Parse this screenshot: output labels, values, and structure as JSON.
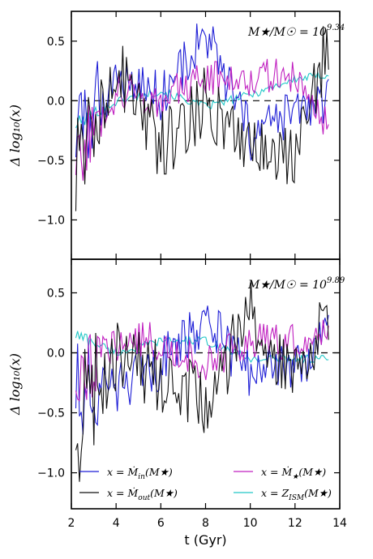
{
  "chart_data": {
    "type": "line",
    "x_label": "t (Gyr)",
    "x_ticks": [
      "2",
      "4",
      "6",
      "8",
      "10",
      "12",
      "14"
    ],
    "xlim": [
      2,
      14
    ],
    "legend_placement": "lower center (bottom panel)",
    "series_styles": [
      {
        "id": "in",
        "label_main": "x = Ṁ",
        "label_sub": "in",
        "label_tail": "(M★)",
        "color": "#1f1fd6"
      },
      {
        "id": "star",
        "label_main": "x = Ṁ",
        "label_sub": "★",
        "label_tail": "(M★)",
        "color": "#c020c0"
      },
      {
        "id": "out",
        "label_main": "x = Ṁ",
        "label_sub": "out",
        "label_tail": "(M★)",
        "color": "#111111"
      },
      {
        "id": "zism",
        "label_main": "x = Z",
        "label_sub": "ISM",
        "label_tail": "(M★)",
        "color": "#22c8c8"
      }
    ],
    "panels": [
      {
        "y_label": "Δ log₁₀(x)",
        "annotation": "M★/M☉ = 10^9.34",
        "annotation_base": "M★/M☉ = 10",
        "annotation_exp": "9.34",
        "ylim": [
          -1.33,
          0.75
        ],
        "y_ticks": [
          0.5,
          0.0,
          -0.5,
          -1.0
        ],
        "y_tick_labels": [
          "0.5",
          "0.0",
          "−0.5",
          "−1.0"
        ],
        "x": [
          2.2,
          4.1,
          6.0,
          8.0,
          10.0,
          12.0,
          13.5
        ],
        "series": [
          {
            "id": "in",
            "values": [
              -0.3,
              0.2,
              0.05,
              0.55,
              -0.3,
              -0.1,
              0.0
            ]
          },
          {
            "id": "star",
            "values": [
              -0.5,
              0.1,
              0.0,
              0.2,
              0.2,
              0.2,
              -0.2
            ]
          },
          {
            "id": "out",
            "values": [
              -0.7,
              0.3,
              -0.4,
              0.0,
              -0.3,
              -0.5,
              0.5
            ]
          },
          {
            "id": "zism",
            "values": [
              -0.2,
              0.0,
              0.08,
              -0.05,
              0.05,
              0.18,
              0.22
            ]
          }
        ]
      },
      {
        "y_label": "Δ log₁₀(x)",
        "annotation": "M★/M☉ = 10^9.89",
        "annotation_base": "M★/M☉ = 10",
        "annotation_exp": "9.89",
        "ylim": [
          -1.3,
          0.78
        ],
        "y_ticks": [
          0.5,
          0.0,
          -0.5,
          -1.0
        ],
        "y_tick_labels": [
          "0.5",
          "0.0",
          "−0.5",
          "−1.0"
        ],
        "x": [
          2.2,
          4.1,
          6.0,
          8.0,
          10.0,
          12.0,
          13.5
        ],
        "series": [
          {
            "id": "in",
            "values": [
              -0.3,
              -0.3,
              -0.1,
              0.3,
              -0.2,
              -0.1,
              0.1
            ]
          },
          {
            "id": "star",
            "values": [
              -0.2,
              0.1,
              0.1,
              -0.1,
              0.1,
              0.1,
              0.2
            ]
          },
          {
            "id": "out",
            "values": [
              -0.6,
              0.0,
              -0.2,
              -0.4,
              0.3,
              -0.2,
              0.3
            ]
          },
          {
            "id": "zism",
            "values": [
              0.15,
              0.0,
              0.1,
              0.1,
              -0.05,
              -0.05,
              -0.05
            ]
          }
        ]
      }
    ]
  }
}
